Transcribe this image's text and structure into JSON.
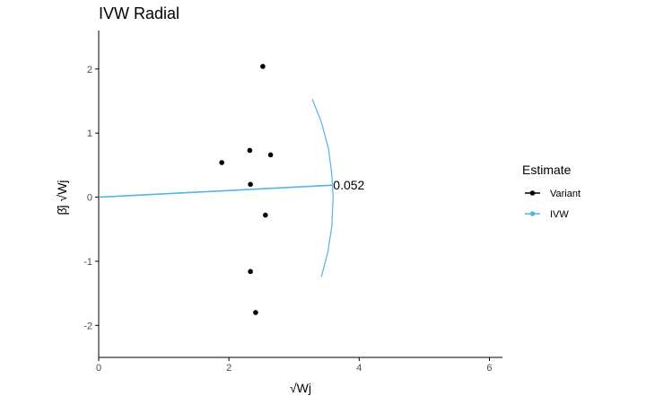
{
  "chart_data": {
    "type": "scatter",
    "title": "IVW Radial",
    "xlabel": "√Wj",
    "ylabel": "β̂j √Wj",
    "xlim": [
      0,
      6.2
    ],
    "ylim": [
      -2.5,
      2.6
    ],
    "x_ticks": [
      0,
      2,
      4,
      6
    ],
    "y_ticks": [
      -2,
      -1,
      0,
      1,
      2
    ],
    "grid": false,
    "legend_position": "right",
    "legend_title": "Estimate",
    "colors": {
      "variant": "#000000",
      "ivw": "#56B4E9",
      "axis": "#000000",
      "tick_text": "#4d4d4d"
    },
    "series": [
      {
        "name": "Variant",
        "points": [
          {
            "x": 2.52,
            "y": 2.04
          },
          {
            "x": 2.32,
            "y": 0.73
          },
          {
            "x": 2.64,
            "y": 0.66
          },
          {
            "x": 1.89,
            "y": 0.54
          },
          {
            "x": 2.33,
            "y": 0.2
          },
          {
            "x": 2.56,
            "y": -0.28
          },
          {
            "x": 2.33,
            "y": -1.16
          },
          {
            "x": 2.41,
            "y": -1.8
          }
        ]
      },
      {
        "name": "IVW",
        "line": {
          "from": [
            0,
            0
          ],
          "to": [
            3.6,
            0.187
          ]
        },
        "arc": [
          {
            "x": 3.28,
            "y": 1.53
          },
          {
            "x": 3.42,
            "y": 1.17
          },
          {
            "x": 3.53,
            "y": 0.75
          },
          {
            "x": 3.58,
            "y": 0.35
          },
          {
            "x": 3.6,
            "y": 0.0
          },
          {
            "x": 3.58,
            "y": -0.45
          },
          {
            "x": 3.52,
            "y": -0.85
          },
          {
            "x": 3.42,
            "y": -1.24
          }
        ]
      }
    ],
    "annotations": [
      {
        "text": "0.052",
        "x": 3.6,
        "y": 0.187
      }
    ]
  }
}
